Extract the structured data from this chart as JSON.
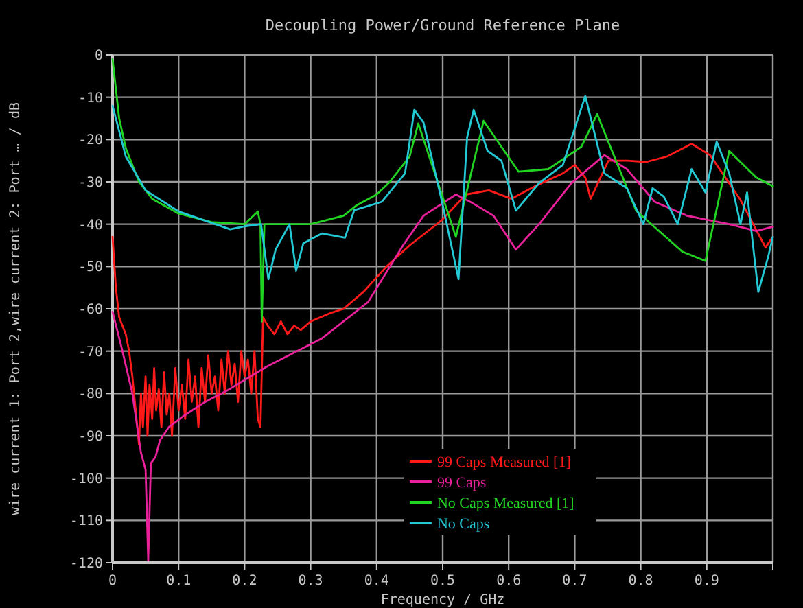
{
  "chart_data": {
    "type": "line",
    "title": "Decoupling Power/Ground Reference Plane",
    "xlabel": "Frequency / GHz",
    "ylabel": "wire current   1: Port 2,wire current   2: Port … / dB",
    "xlim": [
      0,
      1
    ],
    "ylim": [
      -120,
      0
    ],
    "xticks": [
      0,
      0.1,
      0.2,
      0.3,
      0.4,
      0.5,
      0.6,
      0.7,
      0.8,
      0.9,
      {
        "value": 1,
        "label": null
      }
    ],
    "yticks": [
      0,
      -10,
      -20,
      -30,
      -40,
      -50,
      -60,
      -70,
      -80,
      -90,
      -100,
      -110,
      -120
    ],
    "grid": true,
    "legend": "bottom right",
    "marker": "none",
    "line_style": "solid",
    "series": [
      {
        "name": "99 Caps Measured [1]",
        "color": "#ff1a1a",
        "x": [
          0,
          0.005,
          0.01,
          0.015,
          0.02,
          0.025,
          0.03,
          0.035,
          0.04,
          0.043,
          0.046,
          0.05,
          0.053,
          0.056,
          0.06,
          0.063,
          0.066,
          0.07,
          0.074,
          0.078,
          0.082,
          0.086,
          0.09,
          0.095,
          0.1,
          0.105,
          0.11,
          0.115,
          0.12,
          0.125,
          0.13,
          0.135,
          0.14,
          0.145,
          0.15,
          0.155,
          0.16,
          0.165,
          0.17,
          0.175,
          0.18,
          0.185,
          0.19,
          0.195,
          0.2,
          0.205,
          0.21,
          0.215,
          0.22,
          0.224,
          0.228,
          0.235,
          0.245,
          0.255,
          0.265,
          0.275,
          0.285,
          0.3,
          0.315,
          0.33,
          0.35,
          0.38,
          0.415,
          0.45,
          0.499,
          0.535,
          0.57,
          0.604,
          0.64,
          0.682,
          0.7,
          0.716,
          0.724,
          0.751,
          0.78,
          0.808,
          0.84,
          0.877,
          0.905,
          0.95,
          0.989,
          1.0
        ],
        "values": [
          -43,
          -55,
          -62,
          -64,
          -66,
          -70,
          -76,
          -84,
          -92,
          -80,
          -88,
          -76,
          -90,
          -78,
          -86,
          -74,
          -84,
          -79,
          -88,
          -75,
          -85,
          -80,
          -90,
          -74,
          -84,
          -78,
          -86,
          -72,
          -82,
          -76,
          -88,
          -74,
          -82,
          -71,
          -80,
          -76,
          -84,
          -72,
          -80,
          -70,
          -78,
          -73,
          -82,
          -70,
          -76,
          -72,
          -80,
          -70,
          -86,
          -88,
          -62,
          -64,
          -66,
          -63,
          -66,
          -64,
          -65,
          -63,
          -62,
          -61,
          -60,
          -56,
          -50,
          -45,
          -39,
          -33,
          -32,
          -34,
          -31,
          -28,
          -26,
          -29,
          -34,
          -25,
          -25,
          -25.3,
          -24,
          -21,
          -23.7,
          -34,
          -45.5,
          -43
        ]
      },
      {
        "name": "99 Caps",
        "color": "#e8209a",
        "x": [
          0,
          0.015,
          0.03,
          0.043,
          0.05,
          0.054,
          0.058,
          0.065,
          0.072,
          0.085,
          0.106,
          0.14,
          0.177,
          0.233,
          0.317,
          0.387,
          0.44,
          0.471,
          0.52,
          0.545,
          0.577,
          0.611,
          0.646,
          0.695,
          0.745,
          0.779,
          0.821,
          0.87,
          0.934,
          0.975,
          1.0
        ],
        "values": [
          -60.7,
          -70,
          -80,
          -94,
          -98,
          -119.5,
          -96.5,
          -95,
          -91,
          -88,
          -85.5,
          -82,
          -79,
          -73.7,
          -67,
          -58.4,
          -45,
          -38,
          -33,
          -35,
          -38,
          -46,
          -40,
          -30.3,
          -23.7,
          -27,
          -34.7,
          -38,
          -40,
          -41.6,
          -40.6
        ]
      },
      {
        "name": "No Caps Measured [1]",
        "color": "#22d422",
        "x": [
          0,
          0.005,
          0.01,
          0.02,
          0.04,
          0.06,
          0.1,
          0.15,
          0.2,
          0.22,
          0.224,
          0.226,
          0.23,
          0.3,
          0.35,
          0.37,
          0.4,
          0.42,
          0.45,
          0.463,
          0.52,
          0.562,
          0.615,
          0.66,
          0.71,
          0.734,
          0.793,
          0.863,
          0.898,
          0.934,
          0.975,
          1.0
        ],
        "values": [
          -1,
          -8,
          -15,
          -22,
          -30,
          -34,
          -37.5,
          -39.5,
          -40,
          -37,
          -40,
          -63,
          -40,
          -40,
          -38,
          -35.5,
          -33,
          -30,
          -24,
          -16.2,
          -43,
          -15.6,
          -27.6,
          -27,
          -21.7,
          -14,
          -36.8,
          -46.5,
          -48.7,
          -22.7,
          -29,
          -31
        ]
      },
      {
        "name": "No Caps",
        "color": "#22c8d4",
        "x": [
          0,
          0.01,
          0.02,
          0.05,
          0.1,
          0.178,
          0.2,
          0.225,
          0.236,
          0.247,
          0.268,
          0.278,
          0.289,
          0.317,
          0.352,
          0.366,
          0.408,
          0.443,
          0.457,
          0.471,
          0.499,
          0.524,
          0.537,
          0.547,
          0.568,
          0.589,
          0.611,
          0.646,
          0.682,
          0.716,
          0.745,
          0.779,
          0.804,
          0.818,
          0.835,
          0.856,
          0.877,
          0.898,
          0.915,
          0.934,
          0.951,
          0.961,
          0.978,
          0.993,
          1.0
        ],
        "values": [
          -12,
          -18,
          -24,
          -32,
          -37,
          -41.2,
          -40.5,
          -40,
          -53,
          -46,
          -40,
          -51,
          -44.5,
          -42.2,
          -43.2,
          -36.7,
          -34.7,
          -28,
          -13,
          -16,
          -34.7,
          -53,
          -19.5,
          -13,
          -22.7,
          -25,
          -36.8,
          -30.3,
          -26,
          -9.7,
          -28,
          -31.5,
          -40,
          -31.5,
          -33.5,
          -40,
          -27,
          -32.5,
          -20.5,
          -28,
          -40,
          -32.5,
          -56,
          -47.7,
          -43
        ]
      }
    ]
  }
}
